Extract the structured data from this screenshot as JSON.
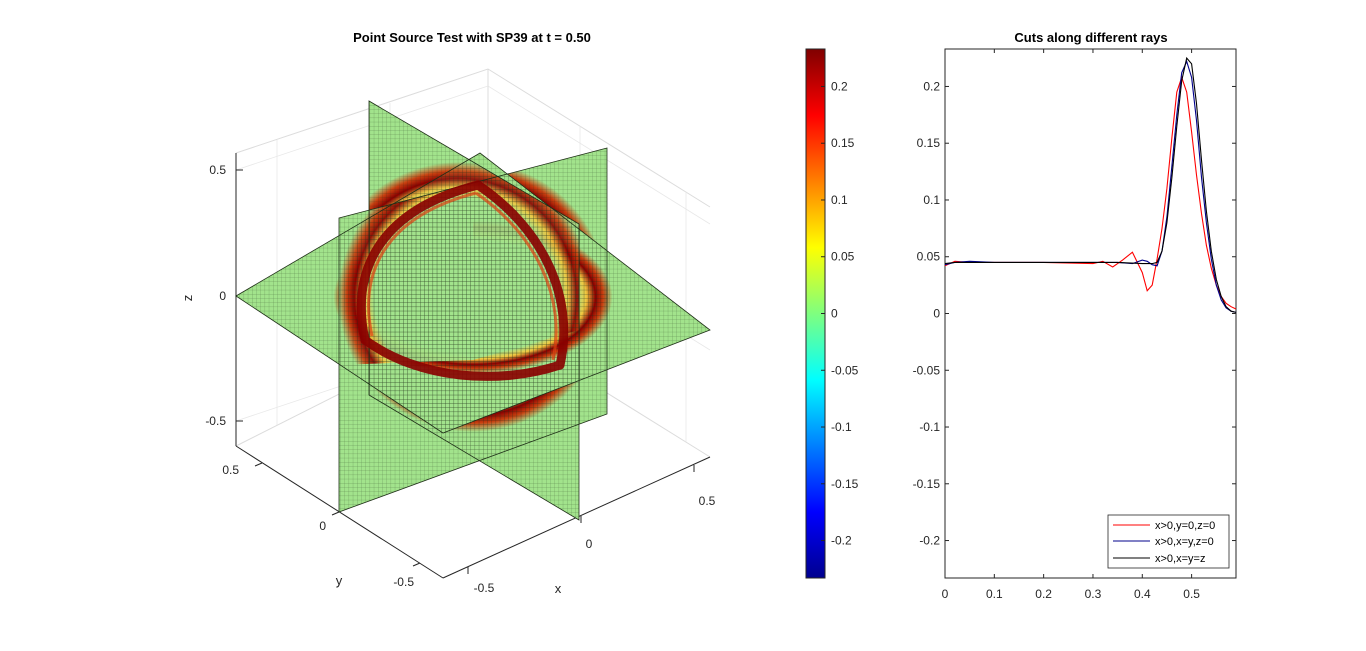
{
  "chart_data": [
    {
      "type": "surface",
      "title": "Point Source Test with SP39 at t = 0.50",
      "xlabel": "x",
      "ylabel": "y",
      "zlabel": "z",
      "x_ticks": [
        "-0.5",
        "0",
        "0.5"
      ],
      "y_ticks": [
        "-0.5",
        "0",
        "0.5"
      ],
      "z_ticks": [
        "0.5",
        "0",
        "-0.5"
      ],
      "xlim": [
        -0.6,
        0.6
      ],
      "ylim": [
        -0.6,
        0.6
      ],
      "zlim": [
        -0.6,
        0.6
      ],
      "slices": [
        "x = 0",
        "y = 0",
        "z = 0"
      ],
      "front_radius": 0.49,
      "background_value": 0.045,
      "front_peak_value": 0.22,
      "grid": true
    },
    {
      "type": "colorbar",
      "colormap": "jet",
      "range": [
        -0.233,
        0.233
      ],
      "ticks": [
        "0.2",
        "0.15",
        "0.1",
        "0.05",
        "0",
        "-0.05",
        "-0.1",
        "-0.15",
        "-0.2"
      ]
    },
    {
      "type": "line",
      "title": "Cuts along different rays",
      "xlabel": "",
      "ylabel": "",
      "xlim": [
        0,
        0.59
      ],
      "ylim": [
        -0.233,
        0.233
      ],
      "x_ticks": [
        "0",
        "0.1",
        "0.2",
        "0.3",
        "0.4",
        "0.5"
      ],
      "y_ticks": [
        "0.2",
        "0.15",
        "0.1",
        "0.05",
        "0",
        "-0.05",
        "-0.1",
        "-0.15",
        "-0.2"
      ],
      "legend_position": "bottom-right",
      "series": [
        {
          "name": "x>0,y=0,z=0",
          "color": "#ff0000",
          "x": [
            0,
            0.02,
            0.05,
            0.1,
            0.2,
            0.3,
            0.32,
            0.34,
            0.36,
            0.38,
            0.4,
            0.41,
            0.42,
            0.43,
            0.44,
            0.45,
            0.46,
            0.47,
            0.48,
            0.49,
            0.5,
            0.51,
            0.52,
            0.53,
            0.54,
            0.55,
            0.56,
            0.57,
            0.58,
            0.59
          ],
          "y": [
            0.042,
            0.046,
            0.045,
            0.045,
            0.045,
            0.044,
            0.046,
            0.041,
            0.047,
            0.054,
            0.036,
            0.02,
            0.025,
            0.048,
            0.075,
            0.11,
            0.155,
            0.195,
            0.208,
            0.195,
            0.16,
            0.122,
            0.088,
            0.06,
            0.04,
            0.025,
            0.015,
            0.009,
            0.006,
            0.004
          ]
        },
        {
          "name": "x>0,x=y,z=0",
          "color": "#00008b",
          "x": [
            0,
            0.02,
            0.05,
            0.1,
            0.2,
            0.3,
            0.35,
            0.38,
            0.4,
            0.41,
            0.42,
            0.43,
            0.44,
            0.45,
            0.46,
            0.47,
            0.48,
            0.49,
            0.5,
            0.51,
            0.52,
            0.53,
            0.54,
            0.55,
            0.56,
            0.57,
            0.58,
            0.59
          ],
          "y": [
            0.043,
            0.045,
            0.046,
            0.045,
            0.045,
            0.045,
            0.045,
            0.044,
            0.047,
            0.046,
            0.043,
            0.042,
            0.055,
            0.085,
            0.13,
            0.175,
            0.212,
            0.222,
            0.208,
            0.17,
            0.12,
            0.08,
            0.048,
            0.025,
            0.012,
            0.005,
            0.002,
            0.001
          ]
        },
        {
          "name": "x>0,x=y=z",
          "color": "#000000",
          "x": [
            0,
            0.02,
            0.05,
            0.1,
            0.2,
            0.3,
            0.35,
            0.4,
            0.42,
            0.43,
            0.44,
            0.45,
            0.46,
            0.47,
            0.48,
            0.49,
            0.5,
            0.51,
            0.52,
            0.53,
            0.54,
            0.55,
            0.56,
            0.57,
            0.58,
            0.59
          ],
          "y": [
            0.044,
            0.045,
            0.045,
            0.045,
            0.045,
            0.045,
            0.045,
            0.044,
            0.044,
            0.045,
            0.055,
            0.08,
            0.12,
            0.165,
            0.205,
            0.225,
            0.22,
            0.185,
            0.135,
            0.09,
            0.055,
            0.03,
            0.015,
            0.006,
            0.002,
            0.001
          ]
        }
      ]
    }
  ]
}
